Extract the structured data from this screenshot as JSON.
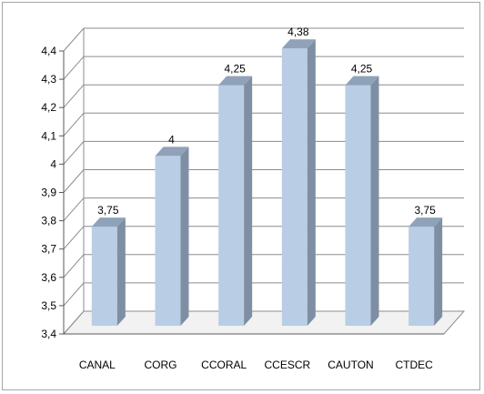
{
  "chart_data": {
    "type": "bar",
    "style": "3d-column",
    "categories": [
      "CANAL",
      "CORG",
      "CCORAL",
      "CCESCR",
      "CAUTON",
      "CTDEC"
    ],
    "values": [
      3.75,
      4,
      4.25,
      4.38,
      4.25,
      3.75
    ],
    "data_labels": [
      "3,75",
      "4",
      "4,25",
      "4,38",
      "4,25",
      "3,75"
    ],
    "ylim": [
      3.4,
      4.4
    ],
    "yticks": [
      3.4,
      3.5,
      3.6,
      3.7,
      3.8,
      3.9,
      4.0,
      4.1,
      4.2,
      4.3,
      4.4
    ],
    "ytick_labels": [
      "3,4",
      "3,5",
      "3,6",
      "3,7",
      "3,8",
      "3,9",
      "4",
      "4,1",
      "4,2",
      "4,3",
      "4,4"
    ],
    "title": "",
    "xlabel": "",
    "ylabel": "",
    "grid": true,
    "legend": "none",
    "colors": {
      "bar_front": "#b9cde5",
      "bar_side": "#7f8fa3",
      "bar_top": "#8fa2b8",
      "grid": "#8c8c8c",
      "axis": "#595959"
    }
  }
}
